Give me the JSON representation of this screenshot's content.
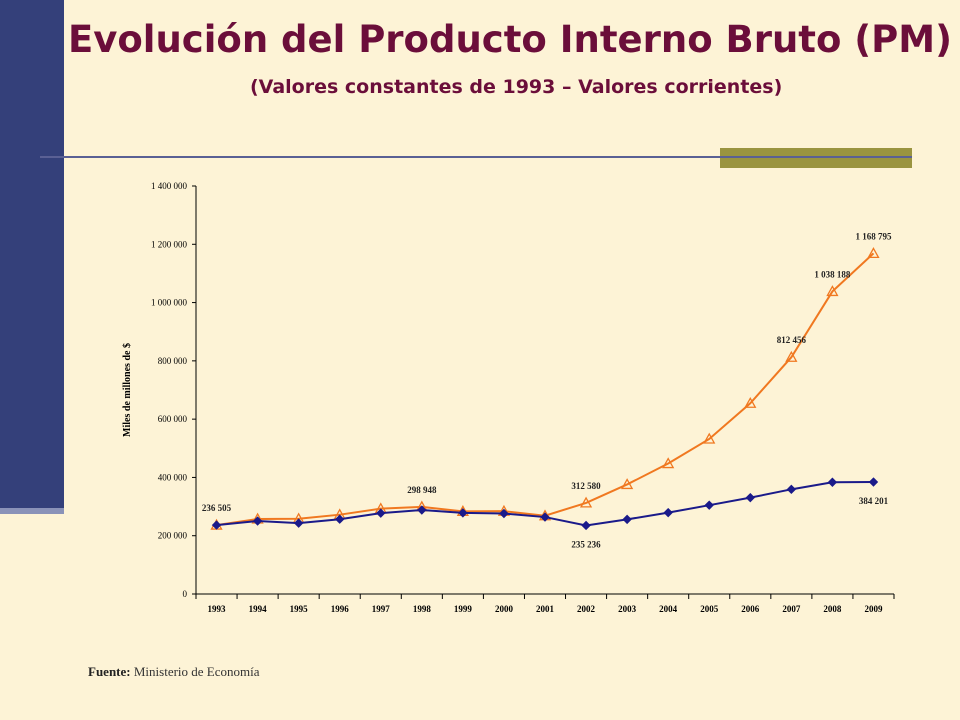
{
  "header": {
    "title": "Evolución del Producto Interno Bruto (PM)",
    "subtitle": "(Valores constantes de 1993 – Valores corrientes)"
  },
  "footer": {
    "source_label": "Fuente:",
    "source_value": "Ministerio de Economía"
  },
  "colors": {
    "background": "#fdf3d6",
    "title": "#6b0e3a",
    "sidebar": "#34407a",
    "accent": "#9a9440",
    "series_constant": "#1a1a8a",
    "series_current": "#f07820"
  },
  "chart_data": {
    "type": "line",
    "ylabel": "Miles de millones de $",
    "xlabel": "",
    "ylim": [
      0,
      1400000
    ],
    "y_ticks": [
      0,
      200000,
      400000,
      600000,
      800000,
      1000000,
      1200000,
      1400000
    ],
    "y_tick_labels": [
      "0",
      "200 000",
      "400 000",
      "600 000",
      "800 000",
      "1 000 000",
      "1 200 000",
      "1 400 000"
    ],
    "categories": [
      "1993",
      "1994",
      "1995",
      "1996",
      "1997",
      "1998",
      "1999",
      "2000",
      "2001",
      "2002",
      "2003",
      "2004",
      "2005",
      "2006",
      "2007",
      "2008",
      "2009"
    ],
    "series": [
      {
        "key": "constant",
        "marker": "diamond",
        "values": [
          236505,
          250308,
          243186,
          256626,
          277441,
          288123,
          278369,
          276173,
          263997,
          235236,
          256023,
          279141,
          304764,
          330565,
          359170,
          383444,
          384201
        ]
      },
      {
        "key": "current",
        "marker": "triangle",
        "values": [
          236505,
          257440,
          258032,
          272150,
          292859,
          298948,
          283523,
          284204,
          268697,
          312580,
          375909,
          447643,
          531939,
          654439,
          812456,
          1038188,
          1168795
        ]
      }
    ],
    "annotations": [
      {
        "series": "constant",
        "index": 0,
        "text": "236 505",
        "pos": "above"
      },
      {
        "series": "current",
        "index": 5,
        "text": "298 948",
        "pos": "above"
      },
      {
        "series": "current",
        "index": 9,
        "text": "312 580",
        "pos": "above"
      },
      {
        "series": "constant",
        "index": 9,
        "text": "235 236",
        "pos": "below"
      },
      {
        "series": "current",
        "index": 14,
        "text": "812 456",
        "pos": "above"
      },
      {
        "series": "current",
        "index": 15,
        "text": "1 038 188",
        "pos": "above"
      },
      {
        "series": "current",
        "index": 16,
        "text": "1 168 795",
        "pos": "above"
      },
      {
        "series": "constant",
        "index": 16,
        "text": "384 201",
        "pos": "below"
      }
    ],
    "grid": false,
    "legend": "none"
  }
}
